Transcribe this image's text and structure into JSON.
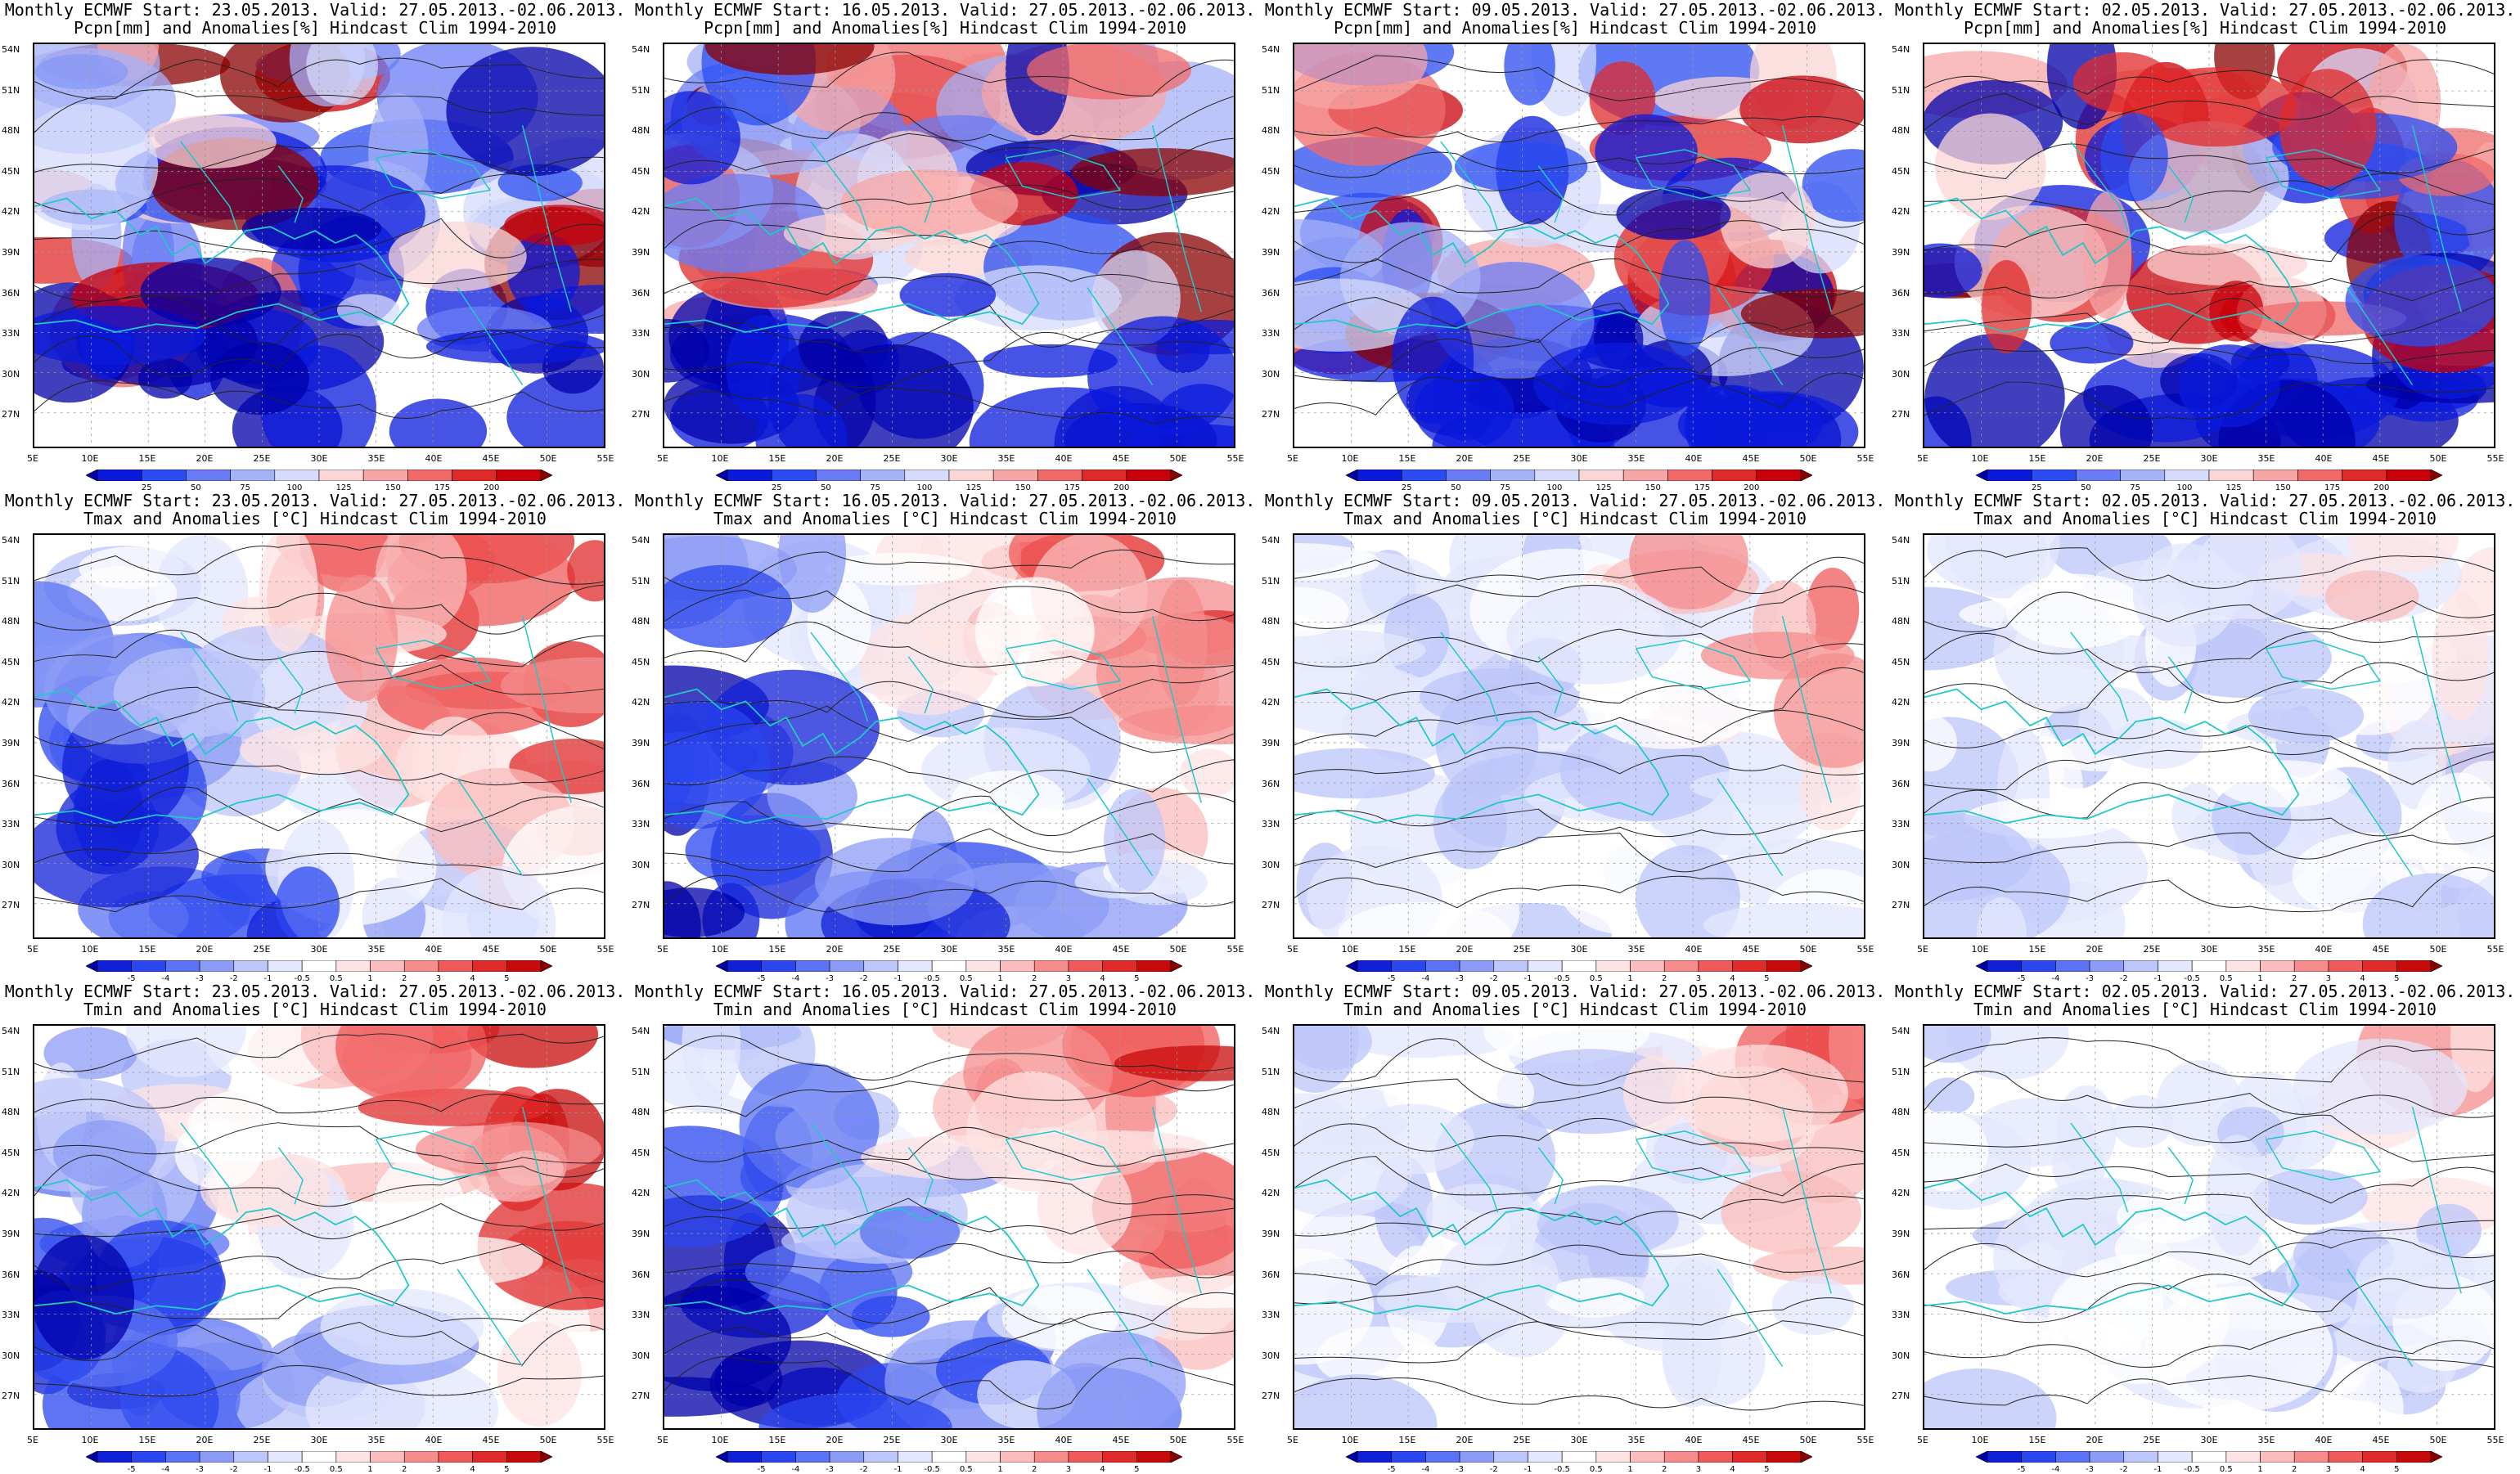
{
  "rows": [
    {
      "variable": "Pcpn[mm] and Anomalies[%] Hindcast Clim 1994-2010",
      "colorbar": {
        "labels": [
          "25",
          "50",
          "75",
          "100",
          "125",
          "150",
          "175",
          "200"
        ],
        "colors": [
          "#0000aa",
          "#0a1adc",
          "#2a4cf2",
          "#6a7cf5",
          "#a6b2f8",
          "#d6dbfb",
          "#fbd6d6",
          "#f7a6a6",
          "#f06a6a",
          "#e02a2a",
          "#c8000a",
          "#8a0000"
        ]
      }
    },
    {
      "variable": "Tmax and Anomalies [°C] Hindcast Clim 1994-2010",
      "colorbar": {
        "labels": [
          "-5",
          "-4",
          "-3",
          "-2",
          "-1",
          "-0.5",
          "0.5",
          "1",
          "2",
          "3",
          "4",
          "5"
        ],
        "colors": [
          "#0000aa",
          "#1020d8",
          "#2a46ef",
          "#5a72f3",
          "#8c9cf6",
          "#bcc6fa",
          "#e3e7fd",
          "#ffffff",
          "#fde3e3",
          "#fabcbc",
          "#f68c8c",
          "#f05a5a",
          "#e02a2a",
          "#c80a0a",
          "#8a0000"
        ]
      }
    },
    {
      "variable": "Tmin and Anomalies [°C] Hindcast Clim 1994-2010",
      "colorbar": {
        "labels": [
          "-5",
          "-4",
          "-3",
          "-2",
          "-1",
          "-0.5",
          "0.5",
          "1",
          "2",
          "3",
          "4",
          "5"
        ],
        "colors": [
          "#0000aa",
          "#1020d8",
          "#2a46ef",
          "#5a72f3",
          "#8c9cf6",
          "#bcc6fa",
          "#e3e7fd",
          "#ffffff",
          "#fde3e3",
          "#fabcbc",
          "#f68c8c",
          "#f05a5a",
          "#e02a2a",
          "#c80a0a",
          "#8a0000"
        ]
      }
    }
  ],
  "columns": [
    {
      "title": "Monthly ECMWF Start: 23.05.2013. Valid: 27.05.2013.-02.06.2013."
    },
    {
      "title": "Monthly ECMWF Start: 16.05.2013. Valid: 27.05.2013.-02.06.2013."
    },
    {
      "title": "Monthly ECMWF Start: 09.05.2013. Valid: 27.05.2013.-02.06.2013."
    },
    {
      "title": "Monthly ECMWF Start: 02.05.2013. Valid: 27.05.2013.-02.06.2013."
    }
  ],
  "axes": {
    "lat_labels": [
      "54N",
      "51N",
      "48N",
      "45N",
      "42N",
      "39N",
      "36N",
      "33N",
      "30N",
      "27N"
    ],
    "lon_labels": [
      "5E",
      "10E",
      "15E",
      "20E",
      "25E",
      "30E",
      "35E",
      "40E",
      "45E",
      "50E",
      "55E"
    ]
  },
  "colors": {
    "coastline": "#22c8c8",
    "contour": "#222222",
    "frame": "#000000"
  }
}
